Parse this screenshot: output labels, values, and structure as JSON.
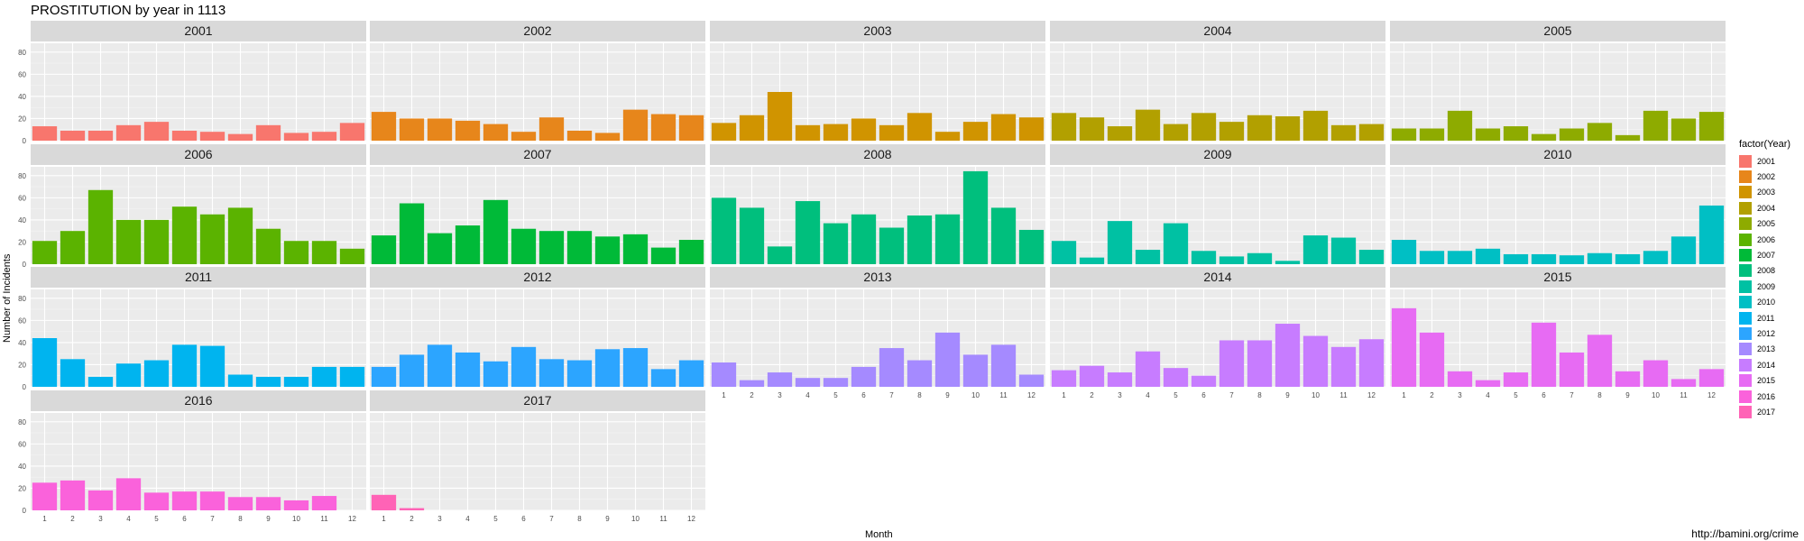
{
  "chart_data": {
    "type": "bar",
    "title": "PROSTITUTION by year in 1113",
    "xlabel": "Month",
    "ylabel": "Number of Incidents",
    "ylim": [
      0,
      88
    ],
    "yticks": [
      "0",
      "20",
      "40",
      "60",
      "80"
    ],
    "categories": [
      "1",
      "2",
      "3",
      "4",
      "5",
      "6",
      "7",
      "8",
      "9",
      "10",
      "11",
      "12"
    ],
    "legend_title": "factor(Year)",
    "legend_position": "right",
    "grid": true,
    "source": "http://bamini.org/crime",
    "series": [
      {
        "name": "2001",
        "color": "#F8766D",
        "values": [
          13,
          9,
          9,
          14,
          17,
          9,
          8,
          6,
          14,
          7,
          8,
          16
        ]
      },
      {
        "name": "2002",
        "color": "#E7861B",
        "values": [
          26,
          20,
          20,
          18,
          15,
          8,
          21,
          9,
          7,
          28,
          24,
          23
        ]
      },
      {
        "name": "2003",
        "color": "#D09400",
        "values": [
          16,
          23,
          44,
          14,
          15,
          20,
          14,
          25,
          8,
          17,
          24,
          21
        ]
      },
      {
        "name": "2004",
        "color": "#B2A000",
        "values": [
          25,
          21,
          13,
          28,
          15,
          25,
          17,
          23,
          22,
          27,
          14,
          15
        ]
      },
      {
        "name": "2005",
        "color": "#8EAB00",
        "values": [
          11,
          11,
          27,
          11,
          13,
          6,
          11,
          16,
          5,
          27,
          20,
          26
        ]
      },
      {
        "name": "2006",
        "color": "#5BB300",
        "values": [
          21,
          30,
          67,
          40,
          40,
          52,
          45,
          51,
          32,
          21,
          21,
          14
        ]
      },
      {
        "name": "2007",
        "color": "#00BA38",
        "values": [
          26,
          55,
          28,
          35,
          58,
          32,
          30,
          30,
          25,
          27,
          15,
          22
        ]
      },
      {
        "name": "2008",
        "color": "#00BF7D",
        "values": [
          60,
          51,
          16,
          57,
          37,
          45,
          33,
          44,
          45,
          84,
          51,
          31
        ]
      },
      {
        "name": "2009",
        "color": "#00C1A3",
        "values": [
          21,
          6,
          39,
          13,
          37,
          12,
          7,
          10,
          3,
          26,
          24,
          13
        ]
      },
      {
        "name": "2010",
        "color": "#00BFC4",
        "values": [
          22,
          12,
          12,
          14,
          9,
          9,
          8,
          10,
          9,
          12,
          25,
          53
        ]
      },
      {
        "name": "2011",
        "color": "#00B4EF",
        "values": [
          44,
          25,
          9,
          21,
          24,
          38,
          37,
          11,
          9,
          9,
          18,
          18
        ]
      },
      {
        "name": "2012",
        "color": "#2CA5FF",
        "values": [
          18,
          29,
          38,
          31,
          23,
          36,
          25,
          24,
          34,
          35,
          16,
          24
        ]
      },
      {
        "name": "2013",
        "color": "#A58AFF",
        "values": [
          22,
          6,
          13,
          8,
          8,
          18,
          35,
          24,
          49,
          29,
          38,
          11
        ]
      },
      {
        "name": "2014",
        "color": "#C77CFF",
        "values": [
          15,
          19,
          13,
          32,
          17,
          10,
          42,
          42,
          57,
          46,
          36,
          43
        ]
      },
      {
        "name": "2015",
        "color": "#E76BF3",
        "values": [
          71,
          49,
          14,
          6,
          13,
          58,
          31,
          47,
          14,
          24,
          7,
          16
        ]
      },
      {
        "name": "2016",
        "color": "#FA62DB",
        "values": [
          25,
          27,
          18,
          29,
          16,
          17,
          17,
          12,
          12,
          9,
          13,
          0
        ]
      },
      {
        "name": "2017",
        "color": "#FF63B6",
        "values": [
          14,
          2,
          0,
          0,
          0,
          0,
          0,
          0,
          0,
          0,
          0,
          0
        ]
      }
    ]
  }
}
